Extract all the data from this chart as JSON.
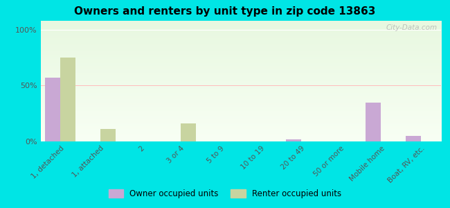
{
  "title": "Owners and renters by unit type in zip code 13863",
  "categories": [
    "1, detached",
    "1, attached",
    "2",
    "3 or 4",
    "5 to 9",
    "10 to 19",
    "20 to 49",
    "50 or more",
    "Mobile home",
    "Boat, RV, etc."
  ],
  "owner_values": [
    57,
    0,
    0,
    0,
    0,
    0,
    2,
    0,
    35,
    5
  ],
  "renter_values": [
    75,
    11,
    0,
    16,
    0,
    0,
    0,
    0,
    0,
    0
  ],
  "owner_color": "#c9a8d4",
  "renter_color": "#c8d4a0",
  "yticks": [
    0,
    50,
    100
  ],
  "ylabels": [
    "0%",
    "50%",
    "100%"
  ],
  "ylim": [
    0,
    108
  ],
  "bar_width": 0.38,
  "legend_owner": "Owner occupied units",
  "legend_renter": "Renter occupied units",
  "bg_outer": "#00e5e5",
  "watermark": "City-Data.com",
  "plot_bg_top": "#f0fce8",
  "plot_bg_bottom": "#e8f5e0"
}
